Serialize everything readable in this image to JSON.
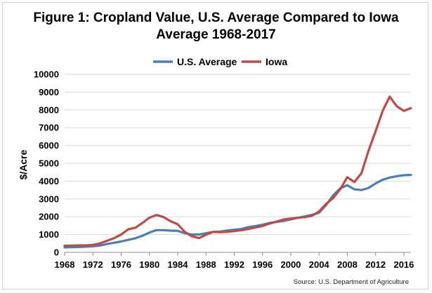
{
  "chart_data": {
    "type": "line",
    "title_line1": "Figure 1: Cropland Value, U.S. Average Compared to Iowa",
    "title_line2": "Average 1968-2017",
    "xlabel": "",
    "ylabel": "$/Acre",
    "source": "Source: U.S. Department of Agriculture",
    "xlim": [
      1968,
      2017
    ],
    "ylim": [
      0,
      10000
    ],
    "x_ticks": [
      "1968",
      "1972",
      "1976",
      "1980",
      "1984",
      "1988",
      "1992",
      "1996",
      "2000",
      "2004",
      "2008",
      "2012",
      "2016"
    ],
    "y_ticks": [
      "0",
      "1000",
      "2000",
      "3000",
      "4000",
      "5000",
      "6000",
      "7000",
      "8000",
      "9000",
      "10000"
    ],
    "grid": true,
    "legend_position": "top-center",
    "x": [
      1968,
      1969,
      1970,
      1971,
      1972,
      1973,
      1974,
      1975,
      1976,
      1977,
      1978,
      1979,
      1980,
      1981,
      1982,
      1983,
      1984,
      1985,
      1986,
      1987,
      1988,
      1989,
      1990,
      1991,
      1992,
      1993,
      1994,
      1995,
      1996,
      1997,
      1998,
      1999,
      2000,
      2001,
      2002,
      2003,
      2004,
      2005,
      2006,
      2007,
      2008,
      2009,
      2010,
      2011,
      2012,
      2013,
      2014,
      2015,
      2016,
      2017
    ],
    "series": [
      {
        "name": "U.S. Average",
        "color": "#4a7ebb",
        "values": [
          280,
          290,
          300,
          320,
          340,
          380,
          470,
          540,
          610,
          700,
          790,
          930,
          1110,
          1250,
          1250,
          1220,
          1210,
          1080,
          1000,
          1000,
          1070,
          1150,
          1170,
          1230,
          1270,
          1310,
          1420,
          1480,
          1550,
          1650,
          1710,
          1760,
          1850,
          1940,
          2020,
          2110,
          2220,
          2660,
          3200,
          3600,
          3770,
          3540,
          3500,
          3620,
          3870,
          4080,
          4200,
          4280,
          4330,
          4350
        ]
      },
      {
        "name": "Iowa",
        "color": "#be4b48",
        "values": [
          370,
          380,
          390,
          390,
          420,
          500,
          650,
          800,
          1000,
          1300,
          1380,
          1650,
          1950,
          2100,
          1980,
          1750,
          1580,
          1150,
          900,
          800,
          990,
          1150,
          1130,
          1150,
          1200,
          1240,
          1310,
          1400,
          1480,
          1620,
          1730,
          1850,
          1900,
          1940,
          1980,
          2050,
          2300,
          2720,
          3050,
          3550,
          4220,
          3950,
          4450,
          5700,
          6800,
          7950,
          8750,
          8200,
          7950,
          8100
        ]
      }
    ]
  }
}
